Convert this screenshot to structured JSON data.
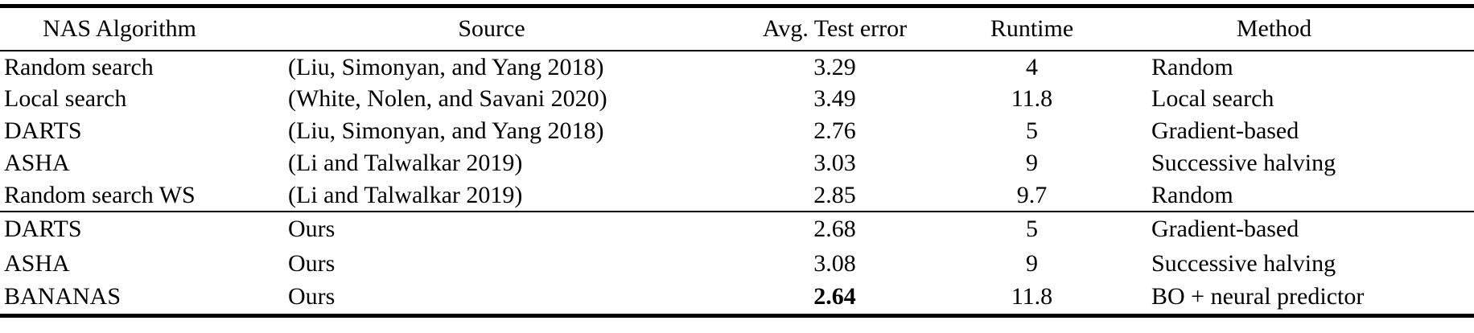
{
  "page": {
    "background": "#ffffff",
    "text_color": "#000000",
    "rule_color": "#000000"
  },
  "table": {
    "headers": [
      "NAS Algorithm",
      "Source",
      "Avg. Test error",
      "Runtime",
      "Method"
    ],
    "sections": [
      {
        "name": "prior-work",
        "rows": [
          {
            "algorithm": "Random search",
            "source": "(Liu, Simonyan, and Yang 2018)",
            "avg_test_error": "3.29",
            "avg_test_error_bold": false,
            "runtime": "4",
            "method": "Random"
          },
          {
            "algorithm": "Local search",
            "source": "(White, Nolen, and Savani 2020)",
            "avg_test_error": "3.49",
            "avg_test_error_bold": false,
            "runtime": "11.8",
            "method": "Local search"
          },
          {
            "algorithm": "DARTS",
            "source": "(Liu, Simonyan, and Yang 2018)",
            "avg_test_error": "2.76",
            "avg_test_error_bold": false,
            "runtime": "5",
            "method": "Gradient-based"
          },
          {
            "algorithm": "ASHA",
            "source": "(Li and Talwalkar 2019)",
            "avg_test_error": "3.03",
            "avg_test_error_bold": false,
            "runtime": "9",
            "method": "Successive halving"
          },
          {
            "algorithm": "Random search WS",
            "source": "(Li and Talwalkar 2019)",
            "avg_test_error": "2.85",
            "avg_test_error_bold": false,
            "runtime": "9.7",
            "method": "Random"
          }
        ]
      },
      {
        "name": "ours",
        "rows": [
          {
            "algorithm": "DARTS",
            "source": "Ours",
            "avg_test_error": "2.68",
            "avg_test_error_bold": false,
            "runtime": "5",
            "method": "Gradient-based"
          },
          {
            "algorithm": "ASHA",
            "source": "Ours",
            "avg_test_error": "3.08",
            "avg_test_error_bold": false,
            "runtime": "9",
            "method": "Successive halving"
          },
          {
            "algorithm": "BANANAS",
            "source": "Ours",
            "avg_test_error": "2.64",
            "avg_test_error_bold": true,
            "runtime": "11.8",
            "method": "BO + neural predictor"
          }
        ]
      }
    ]
  }
}
